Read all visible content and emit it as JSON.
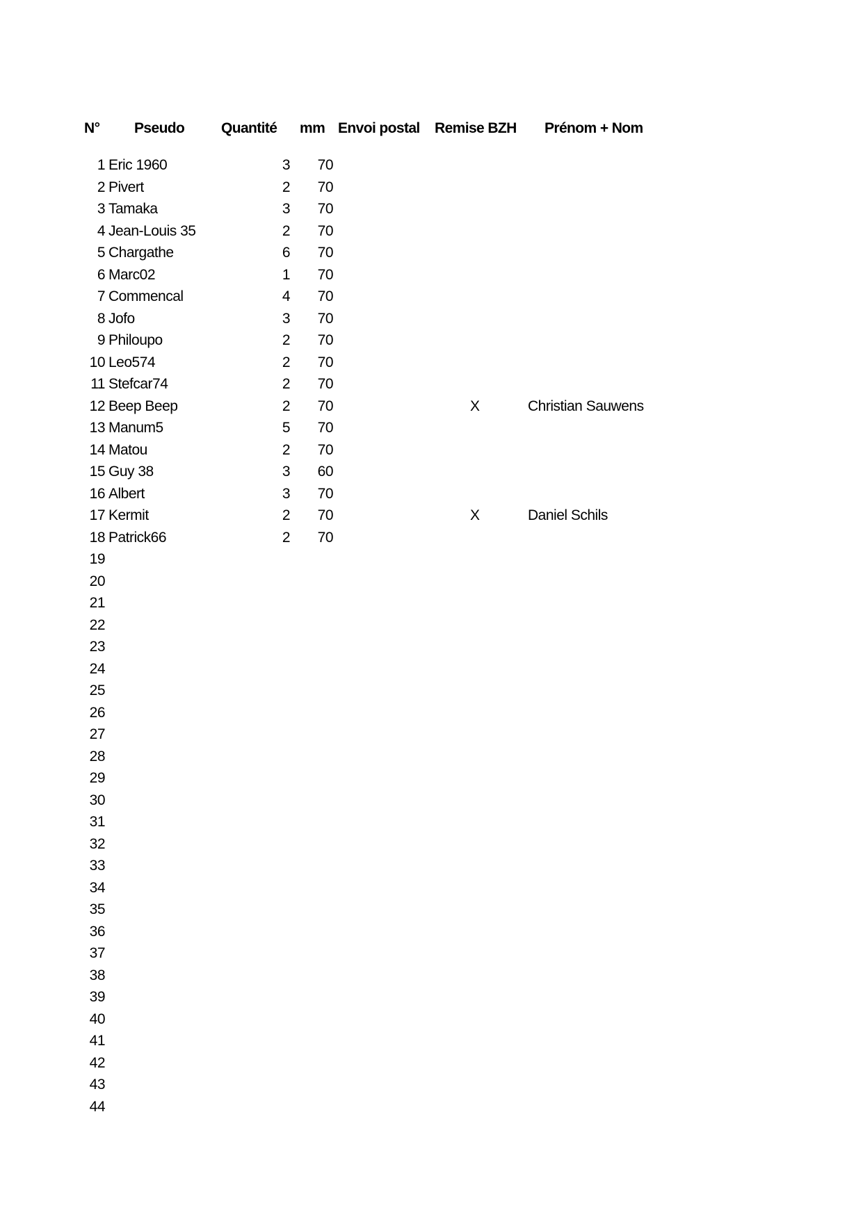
{
  "headers": {
    "no": "N°",
    "pseudo": "Pseudo",
    "quantite": "Quantité",
    "mm": "mm",
    "envoi": "Envoi postal",
    "remise": "Remise BZH",
    "nom": "Prénom + Nom"
  },
  "rows": [
    {
      "no": "1",
      "pseudo": "Eric 1960",
      "qty": "3",
      "mm": "70",
      "remise": "",
      "nom": ""
    },
    {
      "no": "2",
      "pseudo": "Pivert",
      "qty": "2",
      "mm": "70",
      "remise": "",
      "nom": ""
    },
    {
      "no": "3",
      "pseudo": "Tamaka",
      "qty": "3",
      "mm": "70",
      "remise": "",
      "nom": ""
    },
    {
      "no": "4",
      "pseudo": "Jean-Louis 35",
      "qty": "2",
      "mm": "70",
      "remise": "",
      "nom": ""
    },
    {
      "no": "5",
      "pseudo": "Chargathe",
      "qty": "6",
      "mm": "70",
      "remise": "",
      "nom": ""
    },
    {
      "no": "6",
      "pseudo": "Marc02",
      "qty": "1",
      "mm": "70",
      "remise": "",
      "nom": ""
    },
    {
      "no": "7",
      "pseudo": "Commencal",
      "qty": "4",
      "mm": "70",
      "remise": "",
      "nom": ""
    },
    {
      "no": "8",
      "pseudo": "Jofo",
      "qty": "3",
      "mm": "70",
      "remise": "",
      "nom": ""
    },
    {
      "no": "9",
      "pseudo": "Philoupo",
      "qty": "2",
      "mm": "70",
      "remise": "",
      "nom": ""
    },
    {
      "no": "10",
      "pseudo": "Leo574",
      "qty": "2",
      "mm": "70",
      "remise": "",
      "nom": ""
    },
    {
      "no": "11",
      "pseudo": "Stefcar74",
      "qty": "2",
      "mm": "70",
      "remise": "",
      "nom": ""
    },
    {
      "no": "12",
      "pseudo": "Beep Beep",
      "qty": "2",
      "mm": "70",
      "remise": "X",
      "nom": "Christian Sauwens"
    },
    {
      "no": "13",
      "pseudo": "Manum5",
      "qty": "5",
      "mm": "70",
      "remise": "",
      "nom": ""
    },
    {
      "no": "14",
      "pseudo": "Matou",
      "qty": "2",
      "mm": "70",
      "remise": "",
      "nom": ""
    },
    {
      "no": "15",
      "pseudo": "Guy 38",
      "qty": "3",
      "mm": "60",
      "remise": "",
      "nom": ""
    },
    {
      "no": "16",
      "pseudo": "Albert",
      "qty": "3",
      "mm": "70",
      "remise": "",
      "nom": ""
    },
    {
      "no": "17",
      "pseudo": "Kermit",
      "qty": "2",
      "mm": "70",
      "remise": "X",
      "nom": "Daniel Schils"
    },
    {
      "no": "18",
      "pseudo": "Patrick66",
      "qty": "2",
      "mm": "70",
      "remise": "",
      "nom": ""
    },
    {
      "no": "19"
    },
    {
      "no": "20"
    },
    {
      "no": "21"
    },
    {
      "no": "22"
    },
    {
      "no": "23"
    },
    {
      "no": "24"
    },
    {
      "no": "25"
    },
    {
      "no": "26"
    },
    {
      "no": "27"
    },
    {
      "no": "28"
    },
    {
      "no": "29"
    },
    {
      "no": "30"
    },
    {
      "no": "31"
    },
    {
      "no": "32"
    },
    {
      "no": "33"
    },
    {
      "no": "34"
    },
    {
      "no": "35"
    },
    {
      "no": "36"
    },
    {
      "no": "37"
    },
    {
      "no": "38"
    },
    {
      "no": "39"
    },
    {
      "no": "40"
    },
    {
      "no": "41"
    },
    {
      "no": "42"
    },
    {
      "no": "43"
    },
    {
      "no": "44"
    }
  ]
}
